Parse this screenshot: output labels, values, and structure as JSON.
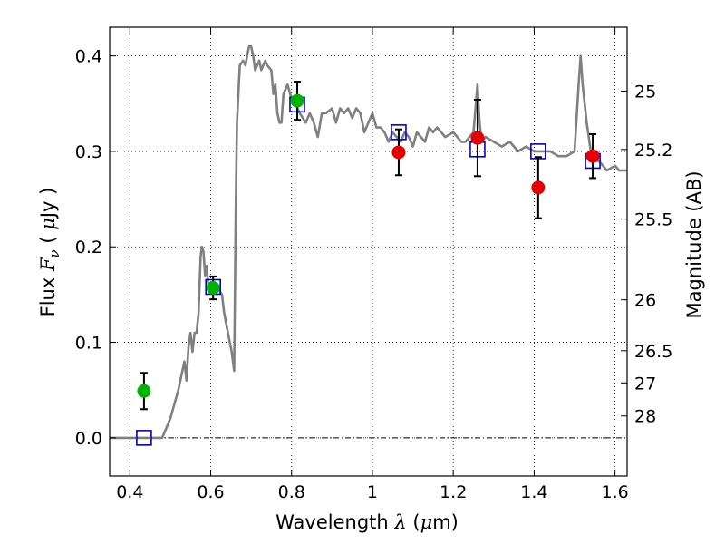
{
  "chart_data": {
    "type": "scatter",
    "xlabel": {
      "prefix": "Wavelength ",
      "symbol": "λ",
      "unit_open": " (",
      "unit_symbol": "μ",
      "unit_rest": "m)"
    },
    "ylabel": {
      "prefix": "Flux ",
      "symbol": "F",
      "subscript": "ν",
      "unit_open": " ( ",
      "unit_symbol": "μ",
      "unit_rest": "Jy )"
    },
    "y2label": "Magnitude (AB)",
    "xlim": [
      0.35,
      1.63
    ],
    "ylim": [
      -0.04,
      0.43
    ],
    "grid": true,
    "xticks": [
      {
        "v": 0.4,
        "label": "0.4"
      },
      {
        "v": 0.6,
        "label": "0.6"
      },
      {
        "v": 0.8,
        "label": "0.8"
      },
      {
        "v": 1.0,
        "label": "1"
      },
      {
        "v": 1.2,
        "label": "1.2"
      },
      {
        "v": 1.4,
        "label": "1.4"
      },
      {
        "v": 1.6,
        "label": "1.6"
      }
    ],
    "yticks": [
      {
        "v": 0.0,
        "label": "0.0"
      },
      {
        "v": 0.1,
        "label": "0.1"
      },
      {
        "v": 0.2,
        "label": "0.2"
      },
      {
        "v": 0.3,
        "label": "0.3"
      },
      {
        "v": 0.4,
        "label": "0.4"
      }
    ],
    "mag_ticks": [
      {
        "v": 25,
        "label": "25"
      },
      {
        "v": 25.2,
        "label": "25.2"
      },
      {
        "v": 25.5,
        "label": "25.5"
      },
      {
        "v": 26,
        "label": "26"
      },
      {
        "v": 26.5,
        "label": "26.5"
      },
      {
        "v": 27,
        "label": "27"
      },
      {
        "v": 28,
        "label": "28"
      }
    ],
    "model_spectrum": {
      "color": "#808080",
      "points": [
        [
          0.35,
          0
        ],
        [
          0.48,
          0
        ],
        [
          0.5,
          0.02
        ],
        [
          0.52,
          0.05
        ],
        [
          0.535,
          0.08
        ],
        [
          0.54,
          0.06
        ],
        [
          0.545,
          0.095
        ],
        [
          0.55,
          0.11
        ],
        [
          0.555,
          0.09
        ],
        [
          0.56,
          0.11
        ],
        [
          0.565,
          0.11
        ],
        [
          0.57,
          0.13
        ],
        [
          0.575,
          0.19
        ],
        [
          0.578,
          0.2
        ],
        [
          0.582,
          0.195
        ],
        [
          0.586,
          0.17
        ],
        [
          0.59,
          0.18
        ],
        [
          0.594,
          0.16
        ],
        [
          0.6,
          0.155
        ],
        [
          0.61,
          0.155
        ],
        [
          0.617,
          0.16
        ],
        [
          0.62,
          0.155
        ],
        [
          0.628,
          0.15
        ],
        [
          0.633,
          0.132
        ],
        [
          0.638,
          0.12
        ],
        [
          0.645,
          0.105
        ],
        [
          0.652,
          0.09
        ],
        [
          0.658,
          0.07
        ],
        [
          0.662,
          0.24
        ],
        [
          0.665,
          0.33
        ],
        [
          0.672,
          0.39
        ],
        [
          0.68,
          0.395
        ],
        [
          0.686,
          0.39
        ],
        [
          0.69,
          0.4
        ],
        [
          0.695,
          0.41
        ],
        [
          0.7,
          0.41
        ],
        [
          0.705,
          0.4
        ],
        [
          0.71,
          0.385
        ],
        [
          0.715,
          0.39
        ],
        [
          0.72,
          0.395
        ],
        [
          0.725,
          0.385
        ],
        [
          0.73,
          0.39
        ],
        [
          0.735,
          0.395
        ],
        [
          0.74,
          0.39
        ],
        [
          0.75,
          0.385
        ],
        [
          0.755,
          0.36
        ],
        [
          0.76,
          0.37
        ],
        [
          0.765,
          0.34
        ],
        [
          0.77,
          0.33
        ],
        [
          0.775,
          0.33
        ],
        [
          0.78,
          0.36
        ],
        [
          0.79,
          0.37
        ],
        [
          0.8,
          0.355
        ],
        [
          0.81,
          0.35
        ],
        [
          0.82,
          0.34
        ],
        [
          0.835,
          0.33
        ],
        [
          0.845,
          0.34
        ],
        [
          0.855,
          0.33
        ],
        [
          0.865,
          0.315
        ],
        [
          0.875,
          0.34
        ],
        [
          0.885,
          0.34
        ],
        [
          0.9,
          0.345
        ],
        [
          0.91,
          0.33
        ],
        [
          0.92,
          0.345
        ],
        [
          0.93,
          0.34
        ],
        [
          0.94,
          0.345
        ],
        [
          0.95,
          0.335
        ],
        [
          0.96,
          0.345
        ],
        [
          0.97,
          0.34
        ],
        [
          0.98,
          0.32
        ],
        [
          0.99,
          0.33
        ],
        [
          1.0,
          0.34
        ],
        [
          1.01,
          0.325
        ],
        [
          1.02,
          0.325
        ],
        [
          1.03,
          0.32
        ],
        [
          1.04,
          0.31
        ],
        [
          1.05,
          0.32
        ],
        [
          1.06,
          0.315
        ],
        [
          1.07,
          0.31
        ],
        [
          1.08,
          0.32
        ],
        [
          1.09,
          0.315
        ],
        [
          1.1,
          0.305
        ],
        [
          1.11,
          0.32
        ],
        [
          1.12,
          0.315
        ],
        [
          1.13,
          0.31
        ],
        [
          1.14,
          0.325
        ],
        [
          1.15,
          0.32
        ],
        [
          1.16,
          0.325
        ],
        [
          1.17,
          0.32
        ],
        [
          1.18,
          0.315
        ],
        [
          1.2,
          0.32
        ],
        [
          1.21,
          0.315
        ],
        [
          1.22,
          0.31
        ],
        [
          1.23,
          0.31
        ],
        [
          1.24,
          0.315
        ],
        [
          1.25,
          0.32
        ],
        [
          1.255,
          0.345
        ],
        [
          1.26,
          0.37
        ],
        [
          1.265,
          0.33
        ],
        [
          1.27,
          0.31
        ],
        [
          1.28,
          0.315
        ],
        [
          1.3,
          0.31
        ],
        [
          1.32,
          0.305
        ],
        [
          1.34,
          0.31
        ],
        [
          1.36,
          0.3
        ],
        [
          1.38,
          0.305
        ],
        [
          1.4,
          0.3
        ],
        [
          1.42,
          0.3
        ],
        [
          1.44,
          0.3
        ],
        [
          1.46,
          0.295
        ],
        [
          1.48,
          0.295
        ],
        [
          1.5,
          0.3
        ],
        [
          1.51,
          0.37
        ],
        [
          1.515,
          0.4
        ],
        [
          1.52,
          0.37
        ],
        [
          1.53,
          0.33
        ],
        [
          1.54,
          0.3
        ],
        [
          1.55,
          0.29
        ],
        [
          1.56,
          0.29
        ],
        [
          1.57,
          0.285
        ],
        [
          1.58,
          0.28
        ],
        [
          1.6,
          0.285
        ],
        [
          1.61,
          0.28
        ],
        [
          1.63,
          0.28
        ]
      ]
    },
    "model_fluxes": {
      "color": "#0000cc",
      "marker": "open-square",
      "points": [
        [
          0.435,
          0.0
        ],
        [
          0.606,
          0.158
        ],
        [
          0.814,
          0.349
        ],
        [
          1.065,
          0.32
        ],
        [
          1.26,
          0.302
        ],
        [
          1.41,
          0.3
        ],
        [
          1.545,
          0.29
        ]
      ]
    },
    "observed_fluxes": [
      {
        "color": "#00b300",
        "marker": "circle",
        "points": [
          {
            "x": 0.435,
            "y": 0.049,
            "err": 0.019
          },
          {
            "x": 0.606,
            "y": 0.157,
            "err": 0.012
          },
          {
            "x": 0.814,
            "y": 0.353,
            "err": 0.02
          }
        ]
      },
      {
        "color": "#e60000",
        "marker": "circle",
        "points": [
          {
            "x": 1.065,
            "y": 0.299,
            "err": 0.024
          },
          {
            "x": 1.26,
            "y": 0.314,
            "err": 0.04
          },
          {
            "x": 1.41,
            "y": 0.262,
            "err": 0.032
          },
          {
            "x": 1.545,
            "y": 0.295,
            "err": 0.023
          }
        ]
      }
    ],
    "zero_line": {
      "y": 0.0,
      "style": "dash-dot"
    }
  }
}
